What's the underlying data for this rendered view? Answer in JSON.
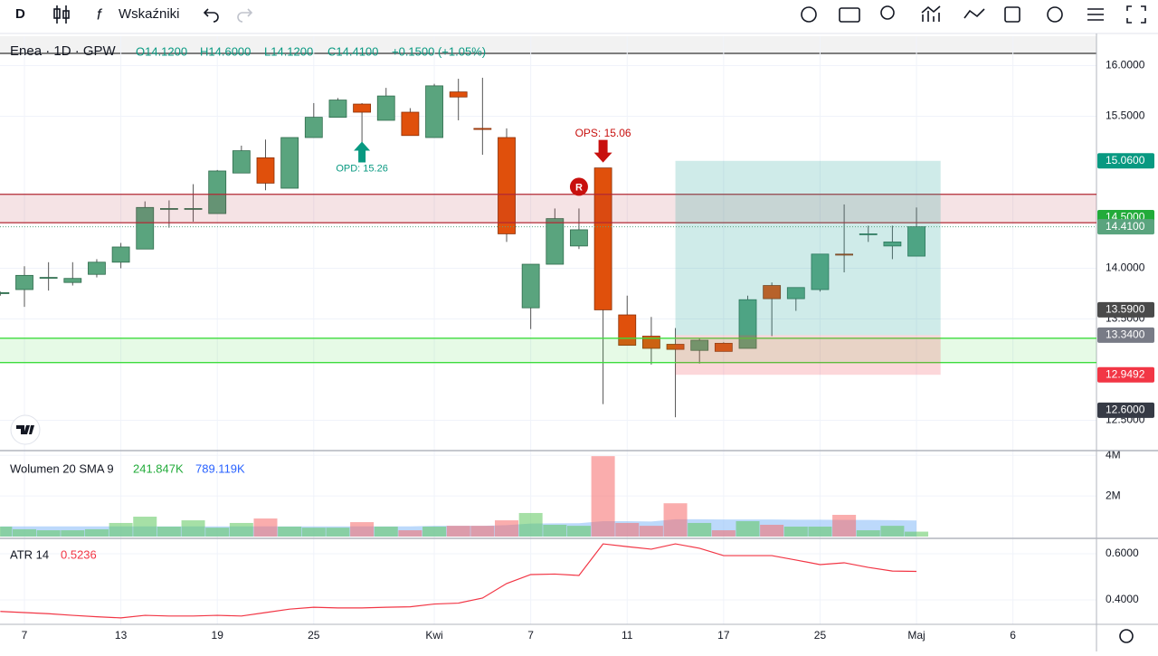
{
  "toolbar": {
    "interval": "D",
    "indicators": "Wskaźniki"
  },
  "legend": {
    "symbol": "Enea · 1D · GPW",
    "open": "O14.1200",
    "high": "H14.6000",
    "low": "L14.1200",
    "close": "C14.4100",
    "change": "+0.1500 (+1.05%)"
  },
  "volume_legend": {
    "title": "Wolumen 20 SMA 9",
    "volume": "241.847K",
    "sma": "789.119K"
  },
  "atr_legend": {
    "title": "ATR 14",
    "value": "0.5236"
  },
  "chart_data": {
    "type": "candlestick",
    "categories": [
      null,
      "7",
      null,
      null,
      null,
      "13",
      null,
      null,
      null,
      "19",
      null,
      null,
      null,
      "25",
      null,
      null,
      null,
      null,
      "Kwi",
      null,
      null,
      null,
      "7",
      null,
      null,
      null,
      "11",
      null,
      null,
      null,
      "17",
      null,
      null,
      null,
      "25",
      null,
      null,
      null,
      "Maj",
      null,
      null,
      null,
      "6"
    ],
    "open": [
      13.75,
      13.79,
      13.91,
      13.86,
      13.94,
      14.06,
      14.19,
      14.59,
      14.59,
      14.54,
      14.94,
      15.09,
      14.79,
      15.29,
      15.49,
      15.62,
      15.46,
      15.54,
      15.29,
      15.74,
      15.38,
      15.29,
      13.61,
      14.04,
      14.22,
      14.99,
      13.54,
      13.33,
      13.25,
      13.19,
      13.26,
      13.21,
      13.83,
      13.7,
      13.79,
      14.14,
      14.34,
      14.22,
      14.12,
      null,
      null,
      null,
      null
    ],
    "high": [
      13.77,
      14.02,
      14.06,
      14.06,
      14.09,
      14.25,
      14.66,
      14.67,
      14.83,
      14.97,
      15.21,
      15.27,
      15.29,
      15.63,
      15.68,
      15.63,
      15.78,
      15.58,
      15.82,
      15.87,
      15.88,
      15.38,
      14.04,
      14.59,
      14.59,
      14.99,
      13.73,
      13.52,
      13.41,
      13.31,
      13.27,
      13.73,
      13.86,
      13.81,
      14.14,
      14.63,
      14.42,
      14.42,
      14.6,
      null,
      null,
      null,
      null
    ],
    "low": [
      13.73,
      13.62,
      13.78,
      13.83,
      13.91,
      14.0,
      14.19,
      14.4,
      14.46,
      14.54,
      14.94,
      14.77,
      14.79,
      15.29,
      15.49,
      15.08,
      15.46,
      15.31,
      15.29,
      15.46,
      15.12,
      14.26,
      13.4,
      14.04,
      14.19,
      12.66,
      13.24,
      13.05,
      12.53,
      13.06,
      13.18,
      13.21,
      13.33,
      13.58,
      13.77,
      13.96,
      14.26,
      14.09,
      14.12,
      null,
      null,
      null,
      null
    ],
    "close": [
      13.76,
      13.93,
      13.91,
      13.9,
      14.06,
      14.21,
      14.6,
      14.59,
      14.59,
      14.96,
      15.16,
      14.84,
      15.29,
      15.49,
      15.66,
      15.54,
      15.7,
      15.31,
      15.8,
      15.69,
      15.37,
      14.34,
      14.04,
      14.49,
      14.38,
      13.59,
      13.24,
      13.21,
      13.2,
      13.29,
      13.18,
      13.69,
      13.7,
      13.81,
      14.14,
      14.13,
      14.34,
      14.26,
      14.41,
      null,
      null,
      null,
      null
    ],
    "up_color": "#5aa47e",
    "down_color": "#e0500c",
    "ylim": [
      12.21,
      16.29
    ],
    "yticks": [
      {
        "value": 12.5,
        "label": "12.5000"
      },
      {
        "value": 13.5,
        "label": "13.5000"
      },
      {
        "value": 14,
        "label": "14.0000"
      },
      {
        "value": 15.5,
        "label": "15.5000"
      },
      {
        "value": 16,
        "label": "16.0000"
      }
    ],
    "price_labels": [
      {
        "value": 15.06,
        "label": "15.0600",
        "color": "#089981"
      },
      {
        "value": 14.5,
        "label": "14.5000",
        "color": "#22ab3a"
      },
      {
        "value": 14.41,
        "label": "14.4100",
        "color": "#5aa47e"
      },
      {
        "value": 13.59,
        "label": "13.5900",
        "color": "#4a4a4a"
      },
      {
        "value": 13.34,
        "label": "13.3400",
        "color": "#787b86"
      },
      {
        "value": 12.9492,
        "label": "12.9492",
        "color": "#f23645"
      },
      {
        "value": 12.6,
        "label": "12.6000",
        "color": "#363a45"
      }
    ],
    "zones": [
      {
        "top": 14.73,
        "bottom": 14.45,
        "color": "#b22833"
      },
      {
        "top": 13.31,
        "bottom": 13.07,
        "color": "#3ddc3d"
      }
    ],
    "horizontal_line": 16.12,
    "position": {
      "start": 28,
      "end": 39,
      "entry": 13.34,
      "target": 15.06,
      "stop": 12.9492
    },
    "annotations": [
      {
        "text": "OPD: 15.26",
        "index": 15,
        "place": "below",
        "color": "#089981"
      },
      {
        "text": "OPS: 15.06",
        "index": 25,
        "place": "above",
        "color": "#c8100e"
      },
      {
        "text": "R",
        "index": 24,
        "place": "badge",
        "color": "#c8100e"
      }
    ],
    "volume": [
      490000,
      360000,
      310000,
      310000,
      360000,
      670000,
      980000,
      490000,
      800000,
      440000,
      670000,
      890000,
      490000,
      440000,
      440000,
      710000,
      490000,
      310000,
      490000,
      530000,
      530000,
      800000,
      1160000,
      580000,
      530000,
      3960000,
      670000,
      530000,
      1640000,
      670000,
      310000,
      760000,
      580000,
      490000,
      490000,
      1070000,
      310000,
      530000,
      241847,
      null,
      null,
      null,
      null
    ],
    "volume_sma": [
      500000,
      500000,
      500000,
      500000,
      500000,
      500000,
      500000,
      500000,
      500000,
      500000,
      500000,
      500000,
      500000,
      500000,
      500000,
      500000,
      500000,
      500000,
      530000,
      530000,
      530000,
      560000,
      640000,
      650000,
      660000,
      760000,
      760000,
      740000,
      850000,
      850000,
      840000,
      840000,
      840000,
      830000,
      830000,
      820000,
      820000,
      810000,
      789119,
      null,
      null,
      null,
      null
    ],
    "volume_ylim": [
      0,
      4100000
    ],
    "volume_yticks": [
      {
        "value": 2000000,
        "label": "2M"
      },
      {
        "value": 4000000,
        "label": "4M"
      }
    ],
    "atr": [
      0.35,
      0.345,
      0.34,
      0.333,
      0.327,
      0.322,
      0.333,
      0.33,
      0.33,
      0.333,
      0.33,
      0.345,
      0.36,
      0.368,
      0.365,
      0.365,
      0.368,
      0.37,
      0.382,
      0.386,
      0.408,
      0.471,
      0.51,
      0.512,
      0.506,
      0.643,
      0.631,
      0.62,
      0.643,
      0.624,
      0.592,
      0.592,
      0.592,
      0.573,
      0.553,
      0.561,
      0.541,
      0.525,
      0.5236,
      null,
      null,
      null,
      null
    ],
    "atr_color": "#f23645",
    "atr_ylim": [
      0.294,
      0.659
    ],
    "atr_yticks": [
      {
        "value": 0.4,
        "label": "0.4000"
      },
      {
        "value": 0.6,
        "label": "0.6000"
      }
    ]
  }
}
